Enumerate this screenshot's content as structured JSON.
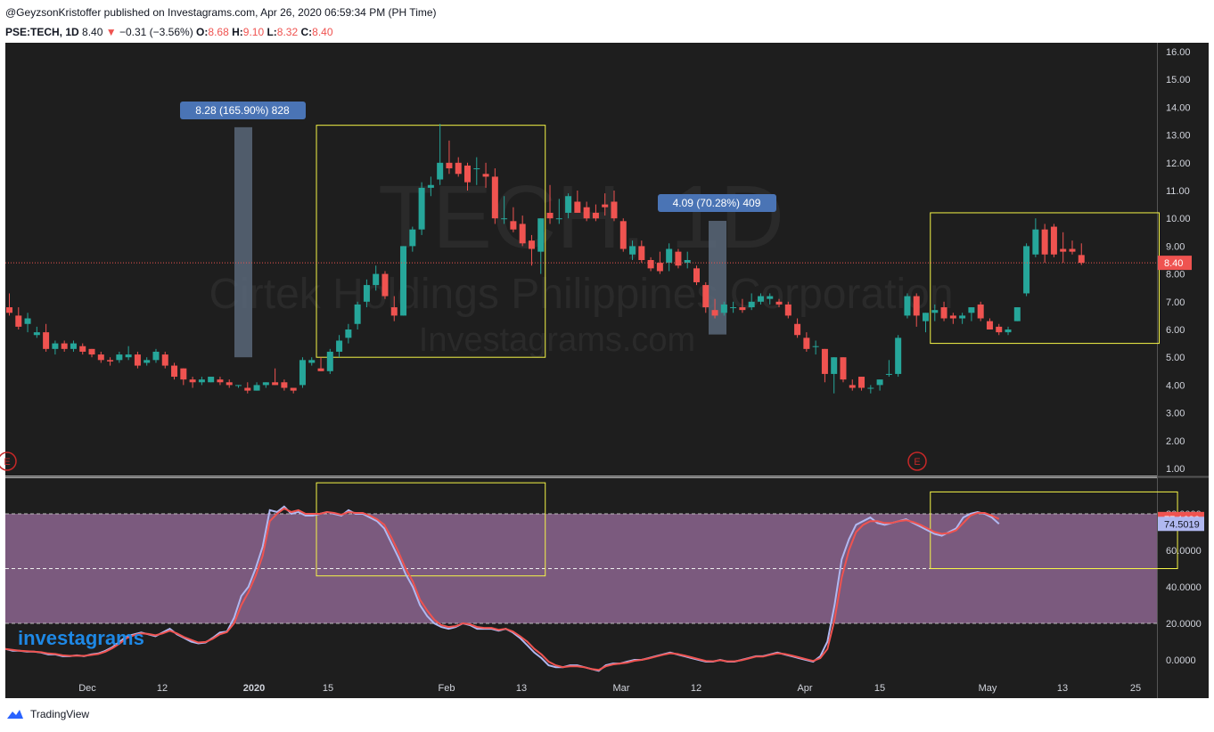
{
  "header": {
    "published": "@GeyzsonKristoffer published on Investagrams.com, Apr 26, 2020 06:59:34 PM (PH Time)",
    "symbol": "PSE:TECH, 1D",
    "last": "8.40",
    "change": "−0.31 (−3.56%)",
    "o_label": "O:",
    "o": "8.68",
    "h_label": "H:",
    "h": "9.10",
    "l_label": "L:",
    "l": "8.32",
    "c_label": "C:",
    "c": "8.40"
  },
  "watermark": {
    "line1": "TECH, 1D",
    "line2": "Cirtek Holdings Philippines Corporation",
    "line3": "Investagrams.com"
  },
  "footer": {
    "brand": "TradingView",
    "logo": "investagrams"
  },
  "annotations": {
    "range1": "8.28 (165.90%) 828",
    "range2": "4.09 (70.28%) 409"
  },
  "earnings_marker": "E",
  "colors": {
    "bg": "#1e1e1e",
    "up": "#26a69a",
    "down": "#ef5350",
    "stoch_k": "#b0b8f0",
    "stoch_d": "#ef5350",
    "band": "#7b5a7e",
    "box": "#f5f547"
  },
  "chart_data": [
    {
      "type": "candlestick",
      "title": "PSE:TECH, 1D",
      "ylim": [
        0.5,
        16.4
      ],
      "y_ticks": [
        "16.00",
        "15.00",
        "14.00",
        "13.00",
        "12.00",
        "11.00",
        "10.00",
        "9.00",
        "8.00",
        "7.00",
        "6.00",
        "5.00",
        "4.00",
        "3.00",
        "2.00",
        "1.00"
      ],
      "x_ticks": [
        "Dec",
        "12",
        "2020",
        "15",
        "Feb",
        "13",
        "Mar",
        "12",
        "Apr",
        "15",
        "May",
        "13",
        "25"
      ],
      "last_price": "8.40",
      "candles": [
        [
          6.8,
          7.3,
          6.5,
          6.6
        ],
        [
          6.5,
          6.8,
          6.0,
          6.1
        ],
        [
          6.2,
          6.6,
          5.9,
          6.4
        ],
        [
          5.8,
          6.1,
          5.7,
          5.9
        ],
        [
          5.9,
          6.2,
          5.2,
          5.3
        ],
        [
          5.3,
          5.6,
          5.1,
          5.5
        ],
        [
          5.5,
          5.6,
          5.2,
          5.3
        ],
        [
          5.3,
          5.6,
          5.2,
          5.5
        ],
        [
          5.4,
          5.5,
          5.1,
          5.2
        ],
        [
          5.3,
          5.3,
          5.0,
          5.1
        ],
        [
          5.1,
          5.2,
          4.8,
          4.9
        ],
        [
          4.9,
          5.0,
          4.7,
          4.85
        ],
        [
          4.9,
          5.2,
          4.8,
          5.1
        ],
        [
          5.0,
          5.4,
          4.9,
          5.1
        ],
        [
          5.1,
          5.2,
          4.6,
          4.7
        ],
        [
          4.8,
          5.0,
          4.7,
          4.9
        ],
        [
          4.9,
          5.3,
          4.8,
          5.2
        ],
        [
          5.1,
          5.2,
          4.6,
          4.7
        ],
        [
          4.7,
          4.8,
          4.2,
          4.3
        ],
        [
          4.6,
          4.6,
          4.0,
          4.2
        ],
        [
          4.2,
          4.3,
          3.9,
          4.1
        ],
        [
          4.1,
          4.3,
          4.0,
          4.2
        ],
        [
          4.1,
          4.3,
          4.1,
          4.3
        ],
        [
          4.2,
          4.3,
          4.0,
          4.1
        ],
        [
          4.1,
          4.2,
          3.9,
          4.0
        ],
        [
          4.0,
          4.0,
          3.9,
          4.0
        ],
        [
          3.9,
          4.1,
          3.7,
          3.8
        ],
        [
          3.8,
          4.1,
          3.8,
          4.0
        ],
        [
          4.0,
          4.1,
          3.9,
          4.1
        ],
        [
          4.1,
          4.6,
          4.0,
          4.0
        ],
        [
          4.1,
          4.2,
          3.8,
          3.9
        ],
        [
          3.9,
          3.9,
          3.7,
          3.8
        ],
        [
          4.0,
          5.0,
          3.9,
          4.9
        ],
        [
          4.8,
          5.0,
          4.7,
          4.9
        ],
        [
          4.6,
          5.0,
          4.5,
          4.5
        ],
        [
          4.5,
          5.3,
          4.4,
          5.2
        ],
        [
          5.2,
          5.8,
          5.0,
          5.6
        ],
        [
          5.7,
          6.2,
          5.5,
          6.0
        ],
        [
          6.2,
          7.0,
          6.0,
          6.9
        ],
        [
          7.0,
          7.8,
          6.8,
          7.6
        ],
        [
          7.6,
          8.3,
          7.4,
          8.0
        ],
        [
          8.0,
          8.1,
          7.1,
          7.2
        ],
        [
          6.8,
          7.2,
          6.3,
          6.5
        ],
        [
          6.5,
          9.0,
          6.5,
          9.0
        ],
        [
          9.0,
          9.7,
          8.8,
          9.6
        ],
        [
          9.6,
          11.3,
          9.4,
          11.1
        ],
        [
          11.1,
          11.5,
          10.8,
          11.2
        ],
        [
          11.4,
          13.4,
          11.2,
          12.0
        ],
        [
          12.0,
          12.8,
          11.6,
          11.8
        ],
        [
          12.0,
          12.2,
          11.5,
          11.6
        ],
        [
          11.9,
          12.0,
          11.0,
          11.3
        ],
        [
          11.8,
          12.2,
          11.2,
          11.8
        ],
        [
          11.6,
          12.0,
          11.1,
          11.5
        ],
        [
          11.5,
          11.8,
          9.8,
          10.0
        ],
        [
          10.0,
          10.8,
          9.8,
          10.0
        ],
        [
          9.9,
          10.4,
          9.5,
          9.6
        ],
        [
          9.8,
          10.1,
          9.0,
          9.1
        ],
        [
          9.2,
          9.4,
          8.3,
          8.9
        ],
        [
          8.8,
          10.0,
          8.0,
          10.0
        ],
        [
          10.2,
          11.2,
          9.8,
          10.0
        ],
        [
          10.0,
          10.7,
          9.8,
          10.0
        ],
        [
          10.2,
          10.9,
          10.0,
          10.8
        ],
        [
          10.6,
          11.0,
          10.2,
          10.2
        ],
        [
          10.4,
          10.6,
          9.9,
          10.0
        ],
        [
          10.2,
          10.5,
          9.9,
          10.0
        ],
        [
          10.5,
          10.9,
          10.1,
          10.4
        ],
        [
          10.6,
          11.0,
          9.9,
          10.0
        ],
        [
          9.9,
          10.0,
          8.8,
          8.9
        ],
        [
          8.7,
          9.2,
          8.5,
          9.0
        ],
        [
          9.0,
          9.2,
          8.4,
          8.5
        ],
        [
          8.5,
          8.6,
          8.1,
          8.2
        ],
        [
          8.4,
          8.8,
          8.0,
          8.1
        ],
        [
          8.4,
          9.1,
          8.1,
          8.9
        ],
        [
          8.8,
          8.9,
          8.2,
          8.3
        ],
        [
          8.4,
          8.8,
          8.2,
          8.5
        ],
        [
          8.2,
          8.3,
          7.6,
          7.7
        ],
        [
          7.6,
          7.7,
          6.6,
          6.8
        ],
        [
          6.7,
          7.1,
          6.4,
          6.5
        ],
        [
          6.6,
          7.0,
          6.5,
          6.9
        ],
        [
          6.8,
          7.0,
          6.6,
          6.8
        ],
        [
          6.8,
          7.1,
          6.6,
          6.7
        ],
        [
          6.8,
          7.3,
          6.7,
          7.0
        ],
        [
          7.0,
          7.3,
          6.9,
          7.2
        ],
        [
          7.1,
          7.3,
          6.9,
          7.2
        ],
        [
          7.0,
          7.1,
          6.8,
          6.9
        ],
        [
          6.9,
          7.0,
          6.4,
          6.5
        ],
        [
          6.2,
          6.4,
          5.7,
          5.8
        ],
        [
          5.7,
          5.9,
          5.2,
          5.3
        ],
        [
          5.4,
          5.6,
          5.1,
          5.4
        ],
        [
          5.3,
          5.3,
          4.1,
          4.4
        ],
        [
          4.4,
          5.0,
          3.7,
          5.0
        ],
        [
          5.0,
          5.0,
          4.1,
          4.2
        ],
        [
          4.0,
          4.2,
          3.8,
          3.9
        ],
        [
          4.3,
          4.3,
          3.8,
          3.9
        ],
        [
          3.9,
          4.0,
          3.7,
          3.9
        ],
        [
          4.0,
          4.2,
          3.8,
          4.2
        ],
        [
          4.4,
          4.9,
          4.3,
          4.4
        ],
        [
          4.4,
          5.8,
          4.3,
          5.7
        ],
        [
          6.5,
          7.3,
          6.4,
          7.2
        ],
        [
          7.2,
          7.3,
          6.1,
          6.5
        ],
        [
          6.3,
          6.6,
          5.9,
          6.6
        ],
        [
          6.6,
          6.9,
          6.3,
          6.7
        ],
        [
          6.8,
          7.0,
          6.3,
          6.4
        ],
        [
          6.5,
          6.6,
          6.2,
          6.4
        ],
        [
          6.4,
          6.6,
          6.2,
          6.5
        ],
        [
          6.6,
          6.8,
          6.3,
          6.8
        ],
        [
          6.9,
          7.0,
          6.3,
          6.4
        ],
        [
          6.3,
          6.4,
          6.0,
          6.0
        ],
        [
          6.1,
          6.2,
          5.8,
          5.9
        ],
        [
          5.9,
          6.1,
          5.8,
          6.0
        ],
        [
          6.3,
          6.8,
          6.3,
          6.8
        ],
        [
          7.3,
          9.1,
          7.2,
          9.0
        ],
        [
          8.7,
          10.0,
          8.6,
          9.6
        ],
        [
          9.6,
          9.8,
          8.4,
          8.7
        ],
        [
          9.7,
          9.8,
          8.6,
          8.7
        ],
        [
          8.9,
          9.5,
          8.4,
          8.8
        ],
        [
          8.9,
          9.2,
          8.7,
          8.8
        ],
        [
          8.68,
          9.1,
          8.32,
          8.4
        ]
      ],
      "range_bars": [
        {
          "label": "8.28 (165.90%) 828",
          "from": 5.0,
          "to": 13.28
        },
        {
          "label": "4.09 (70.28%) 409",
          "from": 5.82,
          "to": 9.91
        }
      ],
      "boxes": [
        {
          "from_candle": 34,
          "to_candle": 58,
          "low": 5.0,
          "high": 13.35
        },
        {
          "from_candle": 101,
          "to_candle": 125,
          "low": 5.5,
          "high": 10.2
        }
      ]
    },
    {
      "type": "line",
      "title": "",
      "ylim": [
        -8,
        104
      ],
      "y_ticks": [
        "80.0000",
        "60.0000",
        "40.0000",
        "20.0000",
        "0.0000"
      ],
      "bands": {
        "upper": 80,
        "middle": 50,
        "lower": 20
      },
      "last_values": {
        "k": "74.5019",
        "d": "77.1636"
      },
      "series": [
        {
          "values": [
            6,
            5,
            5,
            4.5,
            4.5,
            4,
            3,
            3,
            2,
            2,
            2.5,
            2,
            3,
            3.5,
            5,
            7,
            10,
            13,
            14,
            15,
            14,
            13,
            15,
            17,
            14,
            12,
            10,
            9,
            9.5,
            12,
            15,
            15.5,
            23,
            35,
            40,
            50,
            62,
            82,
            81,
            84,
            80,
            81,
            79,
            79,
            80,
            81,
            80,
            79,
            82,
            80,
            80,
            78,
            76,
            72,
            64,
            56,
            47,
            40,
            30,
            24,
            20,
            18,
            17,
            18,
            20,
            19,
            17,
            17,
            17,
            16,
            17,
            15,
            12,
            8,
            4,
            1,
            -3,
            -4,
            -4,
            -3,
            -3,
            -4,
            -5,
            -6,
            -3,
            -2,
            -2,
            -1,
            0,
            0,
            1,
            2,
            3,
            4,
            3,
            2,
            1,
            0,
            -1,
            -1,
            0,
            -1,
            -1,
            0,
            1,
            2,
            2,
            3,
            4,
            3,
            2,
            1,
            0,
            -1,
            2,
            10,
            30,
            55,
            66,
            74,
            76,
            78,
            75,
            74,
            75,
            76,
            77,
            75,
            73,
            71,
            69,
            68,
            70,
            72,
            78,
            80,
            81,
            80,
            78,
            74.5
          ],
          "color": "#b0b8f0"
        },
        {
          "values": [
            6,
            5.5,
            5,
            4.8,
            4.5,
            4.2,
            3.5,
            3.2,
            2.5,
            2.2,
            2.3,
            2.2,
            2.7,
            3.2,
            4.5,
            6.5,
            9,
            12,
            13.5,
            14.5,
            14.2,
            13.5,
            14.5,
            16,
            14.5,
            12.5,
            11,
            9.5,
            9.8,
            11.5,
            14,
            15.2,
            20,
            30,
            37,
            46,
            57,
            76,
            80,
            83,
            81,
            82,
            80,
            80,
            80,
            81,
            80.5,
            79.5,
            81,
            80.5,
            80.5,
            79,
            77,
            74,
            67,
            59,
            50,
            43,
            33,
            27,
            22,
            19,
            18,
            18.5,
            20,
            19.5,
            18,
            17.5,
            17.5,
            16.5,
            17,
            15.5,
            13,
            10,
            6,
            3,
            -1,
            -3,
            -4,
            -3.5,
            -3.5,
            -4,
            -5,
            -5.5,
            -3.5,
            -2.5,
            -2,
            -1.5,
            -0.5,
            0,
            0.8,
            1.8,
            2.8,
            3.6,
            3.2,
            2.4,
            1.4,
            0.4,
            -0.6,
            -0.8,
            -0.2,
            -0.8,
            -0.8,
            -0.2,
            0.8,
            1.8,
            1.8,
            2.8,
            3.6,
            3.2,
            2.4,
            1.4,
            0.4,
            -0.6,
            1,
            6,
            22,
            45,
            60,
            70,
            74,
            76,
            76,
            75,
            75,
            76,
            76.5,
            75.5,
            74,
            72,
            70,
            69,
            69.5,
            71,
            75,
            79,
            80.5,
            80.5,
            79,
            77.1636
          ],
          "color": "#ef5350"
        }
      ],
      "boxes": [
        {
          "from_candle": 34,
          "to_candle": 58,
          "low": 46,
          "high": 97
        },
        {
          "from_candle": 101,
          "to_candle": 127,
          "low": 50,
          "high": 92
        }
      ]
    }
  ]
}
